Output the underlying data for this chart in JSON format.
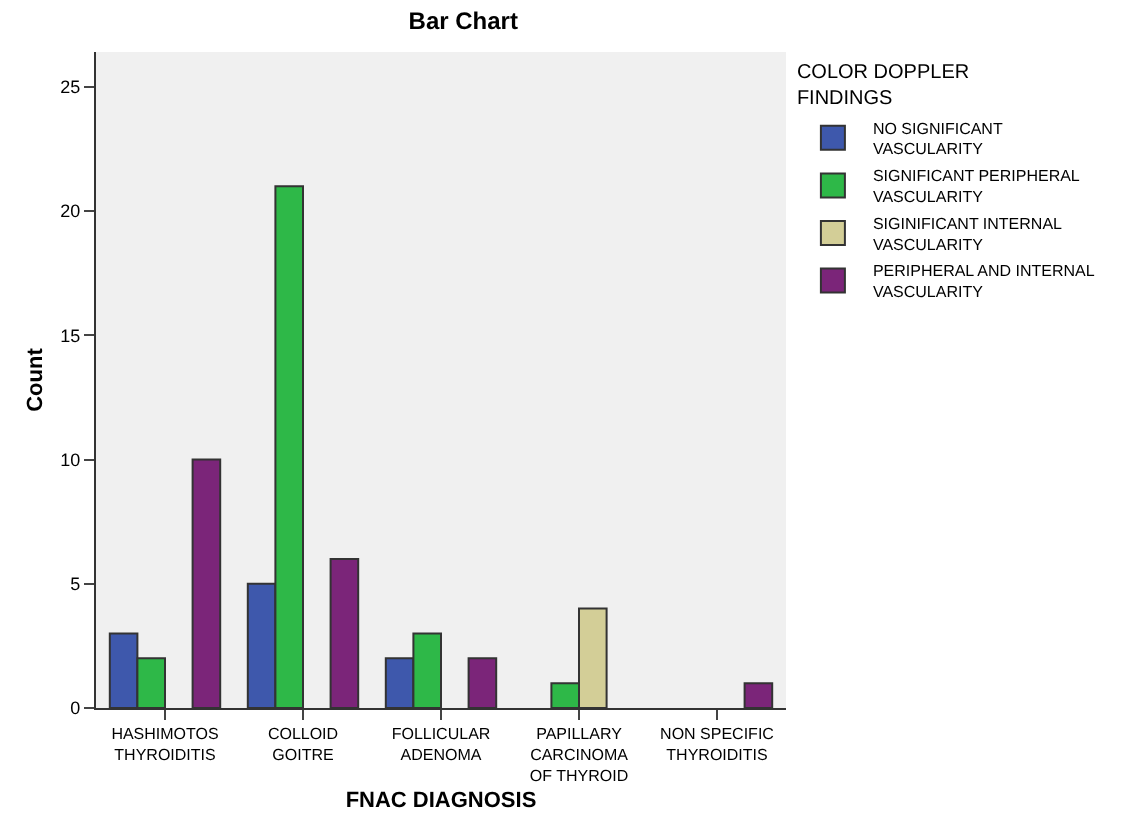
{
  "chart_data": {
    "type": "bar",
    "title": "Bar Chart",
    "xlabel": "FNAC DIAGNOSIS",
    "ylabel": "Count",
    "legend_title": "COLOR DOPPLER\nFINDINGS",
    "categories": [
      "HASHIMOTOS\nTHYROIDITIS",
      "COLLOID\nGOITRE",
      "FOLLICULAR\nADENOMA",
      "PAPILLARY\nCARCINOMA\nOF THYROID",
      "NON SPECIFIC\nTHYROIDITIS"
    ],
    "series": [
      {
        "name": "NO SIGNIFICANT\nVASCULARITY",
        "color": "#3e58ac",
        "values": [
          3,
          5,
          2,
          null,
          null
        ]
      },
      {
        "name": "SIGNIFICANT PERIPHERAL\nVASCULARITY",
        "color": "#2eb848",
        "values": [
          2,
          21,
          3,
          1,
          null
        ]
      },
      {
        "name": "SIGINIFICANT INTERNAL\nVASCULARITY",
        "color": "#d3ce97",
        "values": [
          null,
          null,
          null,
          4,
          null
        ]
      },
      {
        "name": "PERIPHERAL AND INTERNAL\nVASCULARITY",
        "color": "#7b2579",
        "values": [
          10,
          6,
          2,
          null,
          1
        ]
      }
    ],
    "ylim": [
      0,
      26.4
    ],
    "yticks": [
      0,
      5,
      10,
      15,
      20,
      25
    ],
    "grid": false,
    "legend": "right"
  }
}
